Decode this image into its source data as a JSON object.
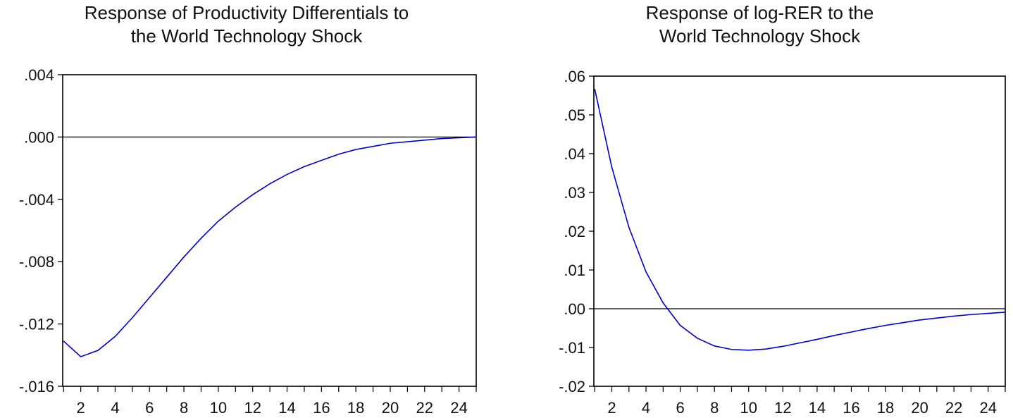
{
  "chart_data": [
    {
      "type": "line",
      "title_lines": [
        "Response of Productivity Differentials to",
        "the World Technology Shock"
      ],
      "xlabel": "",
      "ylabel": "",
      "x": [
        1,
        2,
        3,
        4,
        5,
        6,
        7,
        8,
        9,
        10,
        11,
        12,
        13,
        14,
        15,
        16,
        17,
        18,
        19,
        20,
        21,
        22,
        23,
        24,
        25
      ],
      "x_tick_labels": [
        "2",
        "4",
        "6",
        "8",
        "10",
        "12",
        "14",
        "16",
        "18",
        "20",
        "22",
        "24"
      ],
      "y_tick_labels": [
        ".004",
        ".000",
        "-.004",
        "-.008",
        "-.012",
        "-.016"
      ],
      "y_tick_values": [
        0.004,
        0.0,
        -0.004,
        -0.008,
        -0.012,
        -0.016
      ],
      "ylim": [
        -0.016,
        0.004
      ],
      "xlim": [
        1,
        25
      ],
      "zero_line": true,
      "grid": false,
      "series": [
        {
          "color": "#0000cc",
          "values": [
            -0.0131,
            -0.0141,
            -0.0137,
            -0.0128,
            -0.0116,
            -0.0103,
            -0.009,
            -0.0077,
            -0.0065,
            -0.0054,
            -0.0045,
            -0.0037,
            -0.003,
            -0.0024,
            -0.0019,
            -0.0015,
            -0.0011,
            -0.0008,
            -0.0006,
            -0.0004,
            -0.0003,
            -0.0002,
            -0.0001,
            -5e-05,
            0.0
          ]
        }
      ]
    },
    {
      "type": "line",
      "title_lines": [
        "Response of log-RER to the",
        "World Technology Shock"
      ],
      "xlabel": "",
      "ylabel": "",
      "x": [
        1,
        2,
        3,
        4,
        5,
        6,
        7,
        8,
        9,
        10,
        11,
        12,
        13,
        14,
        15,
        16,
        17,
        18,
        19,
        20,
        21,
        22,
        23,
        24,
        25
      ],
      "x_tick_labels": [
        "2",
        "4",
        "6",
        "8",
        "10",
        "12",
        "14",
        "16",
        "18",
        "20",
        "22",
        "24"
      ],
      "y_tick_labels": [
        ".06",
        ".05",
        ".04",
        ".03",
        ".02",
        ".01",
        ".00",
        "-.01",
        "-.02"
      ],
      "y_tick_values": [
        0.06,
        0.05,
        0.04,
        0.03,
        0.02,
        0.01,
        0.0,
        -0.01,
        -0.02
      ],
      "ylim": [
        -0.02,
        0.06
      ],
      "xlim": [
        1,
        25
      ],
      "zero_line": true,
      "grid": false,
      "series": [
        {
          "color": "#0000cc",
          "values": [
            0.0567,
            0.0365,
            0.021,
            0.0095,
            0.0015,
            -0.0043,
            -0.0076,
            -0.0096,
            -0.0105,
            -0.0107,
            -0.0104,
            -0.0097,
            -0.0088,
            -0.0079,
            -0.0069,
            -0.006,
            -0.0051,
            -0.0043,
            -0.0036,
            -0.0029,
            -0.0024,
            -0.0019,
            -0.0015,
            -0.0012,
            -0.0009
          ]
        }
      ]
    }
  ]
}
